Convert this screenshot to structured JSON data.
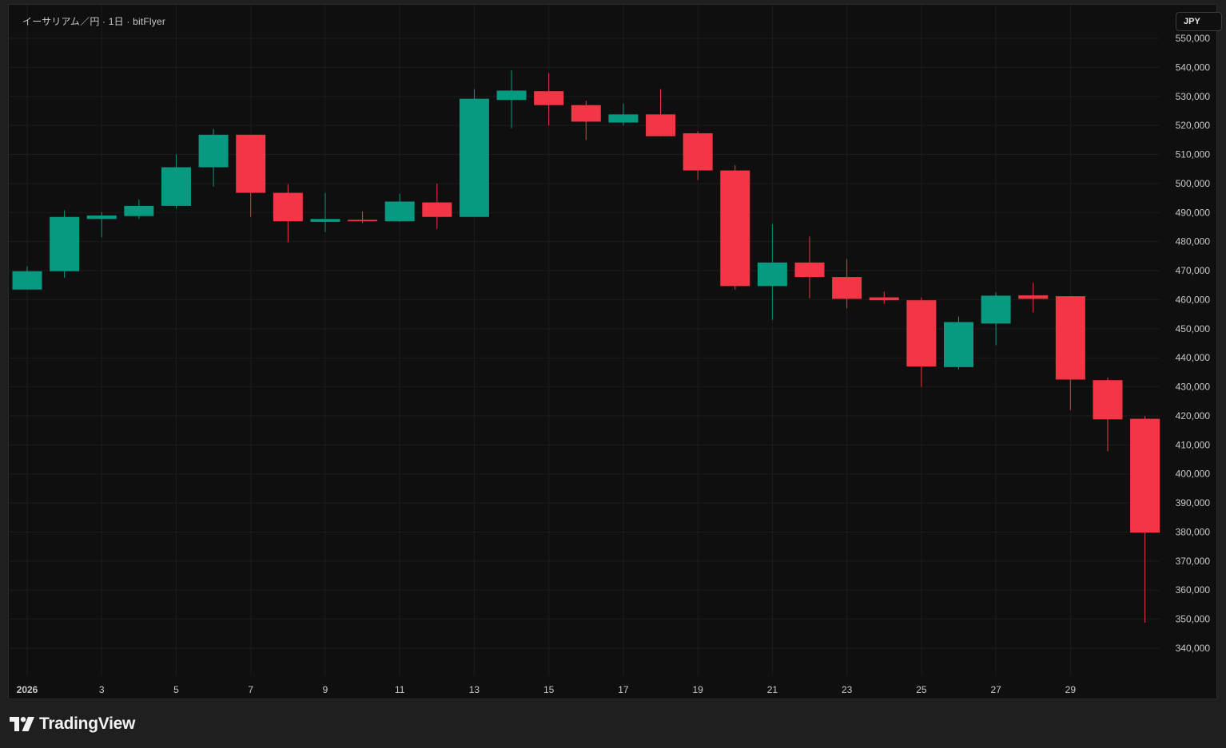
{
  "header": {
    "symbol_title": "イーサリアム／円 · 1日 · bitFlyer",
    "currency_button": "JPY"
  },
  "footer": {
    "brand": "TradingView"
  },
  "colors": {
    "background": "#0f0f0f",
    "grid": "#1c1c1c",
    "up": "#089981",
    "down": "#f23645",
    "axis_text": "#c8c8c8"
  },
  "chart_data": {
    "type": "candlestick",
    "title": "イーサリアム／円 · 1日 · bitFlyer",
    "currency": "JPY",
    "ylim": [
      335000,
      555000
    ],
    "y_ticks": [
      340000,
      350000,
      360000,
      370000,
      380000,
      390000,
      400000,
      410000,
      420000,
      430000,
      440000,
      450000,
      460000,
      470000,
      480000,
      490000,
      500000,
      510000,
      520000,
      530000,
      540000,
      550000
    ],
    "x_tick_labels": [
      {
        "day": 1,
        "label": "2026"
      },
      {
        "day": 3,
        "label": "3"
      },
      {
        "day": 5,
        "label": "5"
      },
      {
        "day": 7,
        "label": "7"
      },
      {
        "day": 9,
        "label": "9"
      },
      {
        "day": 11,
        "label": "11"
      },
      {
        "day": 13,
        "label": "13"
      },
      {
        "day": 15,
        "label": "15"
      },
      {
        "day": 17,
        "label": "17"
      },
      {
        "day": 19,
        "label": "19"
      },
      {
        "day": 21,
        "label": "21"
      },
      {
        "day": 23,
        "label": "23"
      },
      {
        "day": 25,
        "label": "25"
      },
      {
        "day": 27,
        "label": "27"
      },
      {
        "day": 29,
        "label": "29"
      }
    ],
    "candles": [
      {
        "day": 1,
        "open": 463500,
        "high": 471500,
        "low": 463500,
        "close": 469800
      },
      {
        "day": 2,
        "open": 469800,
        "high": 490800,
        "low": 467500,
        "close": 488500
      },
      {
        "day": 3,
        "open": 487800,
        "high": 490200,
        "low": 481500,
        "close": 489000
      },
      {
        "day": 4,
        "open": 488800,
        "high": 494500,
        "low": 487800,
        "close": 492300
      },
      {
        "day": 5,
        "open": 492300,
        "high": 510000,
        "low": 491500,
        "close": 505600
      },
      {
        "day": 6,
        "open": 505600,
        "high": 518800,
        "low": 499000,
        "close": 516800
      },
      {
        "day": 7,
        "open": 516800,
        "high": 516800,
        "low": 488500,
        "close": 496800
      },
      {
        "day": 8,
        "open": 496800,
        "high": 499800,
        "low": 479800,
        "close": 487000
      },
      {
        "day": 9,
        "open": 486800,
        "high": 496800,
        "low": 483300,
        "close": 487800
      },
      {
        "day": 10,
        "open": 487500,
        "high": 490400,
        "low": 486400,
        "close": 487000
      },
      {
        "day": 11,
        "open": 487000,
        "high": 496500,
        "low": 486800,
        "close": 493800
      },
      {
        "day": 12,
        "open": 493500,
        "high": 500000,
        "low": 484400,
        "close": 488500
      },
      {
        "day": 13,
        "open": 488500,
        "high": 532500,
        "low": 488500,
        "close": 529200
      },
      {
        "day": 14,
        "open": 528800,
        "high": 539000,
        "low": 519000,
        "close": 532000
      },
      {
        "day": 15,
        "open": 531800,
        "high": 538000,
        "low": 520000,
        "close": 527000
      },
      {
        "day": 16,
        "open": 527000,
        "high": 528500,
        "low": 515000,
        "close": 521300
      },
      {
        "day": 17,
        "open": 521000,
        "high": 527500,
        "low": 520000,
        "close": 523800
      },
      {
        "day": 18,
        "open": 523800,
        "high": 532500,
        "low": 516200,
        "close": 516300
      },
      {
        "day": 19,
        "open": 517300,
        "high": 518000,
        "low": 501200,
        "close": 504500
      },
      {
        "day": 20,
        "open": 504500,
        "high": 506300,
        "low": 463500,
        "close": 464700
      },
      {
        "day": 21,
        "open": 464700,
        "high": 486000,
        "low": 453000,
        "close": 472800
      },
      {
        "day": 22,
        "open": 472800,
        "high": 481800,
        "low": 460500,
        "close": 467800
      },
      {
        "day": 23,
        "open": 467800,
        "high": 474000,
        "low": 457000,
        "close": 460300
      },
      {
        "day": 24,
        "open": 460800,
        "high": 462800,
        "low": 458600,
        "close": 459800
      },
      {
        "day": 25,
        "open": 459800,
        "high": 460800,
        "low": 430000,
        "close": 437000
      },
      {
        "day": 26,
        "open": 436800,
        "high": 454200,
        "low": 436000,
        "close": 452300
      },
      {
        "day": 27,
        "open": 451800,
        "high": 462500,
        "low": 444300,
        "close": 461400
      },
      {
        "day": 28,
        "open": 461500,
        "high": 465800,
        "low": 455600,
        "close": 460300
      },
      {
        "day": 29,
        "open": 461200,
        "high": 461200,
        "low": 422000,
        "close": 432500
      },
      {
        "day": 30,
        "open": 432300,
        "high": 433200,
        "low": 407800,
        "close": 418800
      },
      {
        "day": 31,
        "open": 419000,
        "high": 420000,
        "low": 348800,
        "close": 379800
      }
    ]
  }
}
